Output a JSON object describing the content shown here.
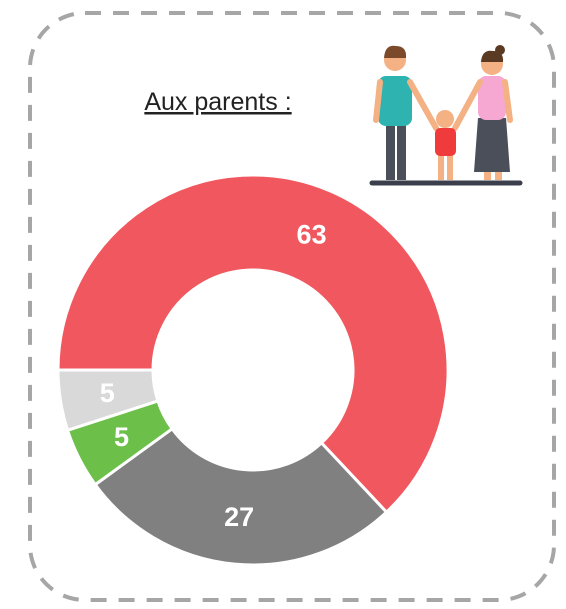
{
  "chart_data": {
    "type": "donut",
    "title": "Aux parents :",
    "values": [
      63,
      27,
      5,
      5
    ],
    "colors": [
      "#f0575e",
      "#808080",
      "#6cc04a",
      "#d9d9d9"
    ]
  }
}
